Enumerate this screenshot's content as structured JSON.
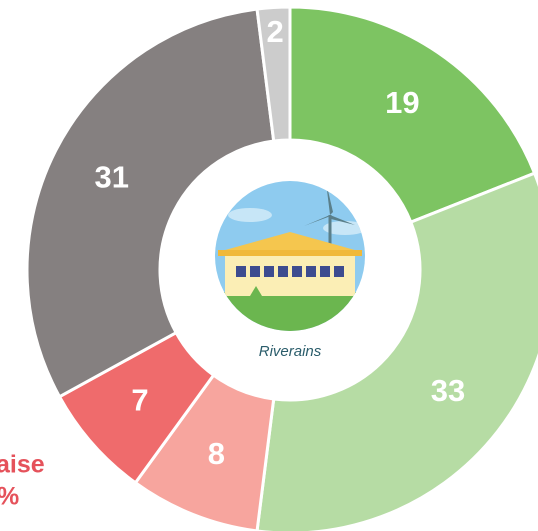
{
  "chart_data": {
    "type": "pie",
    "values": [
      19,
      33,
      8,
      7,
      31,
      2
    ],
    "colors": [
      "#7dc462",
      "#b6dca4",
      "#f7a59e",
      "#ef6b6c",
      "#858080",
      "#cccccc"
    ],
    "center_label": "Riverains",
    "annotations": [
      "aise",
      "%"
    ]
  }
}
